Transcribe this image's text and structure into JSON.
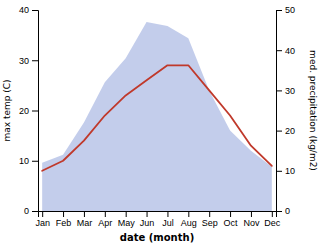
{
  "chart_data": {
    "type": "line",
    "xlabel": "date (month)",
    "ylabel": "max temp (C)",
    "y2label": "med. precipitation (kg/m2)",
    "categories": [
      "Jan",
      "Feb",
      "Mar",
      "Apr",
      "May",
      "Jun",
      "Jul",
      "Aug",
      "Sep",
      "Oct",
      "Nov",
      "Dec"
    ],
    "series": [
      {
        "type": "area",
        "axis": "y2",
        "color": "#b8c4e8",
        "values": [
          12,
          14,
          22,
          32,
          38,
          47,
          46,
          43,
          30,
          20,
          15,
          11
        ]
      },
      {
        "type": "line",
        "color": "#c0392b",
        "values": [
          8,
          10,
          14,
          19,
          23,
          26,
          29,
          29,
          24,
          19,
          13,
          9
        ]
      }
    ],
    "ylim": [
      0,
      40
    ],
    "yticks": [
      0,
      10,
      20,
      30,
      40
    ],
    "y2lim": [
      0,
      50
    ],
    "y2ticks": [
      0,
      10,
      20,
      30,
      40,
      50
    ]
  }
}
